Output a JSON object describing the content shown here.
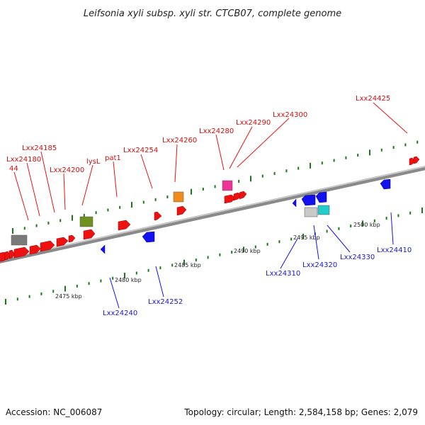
{
  "title": "Leifsonia xyli subsp. xyli str. CTCB07, complete genome",
  "footer": {
    "accession": "Accession: NC_006087",
    "summary": "Topology: circular; Length: 2,584,158 bp; Genes: 2,079"
  },
  "colors": {
    "forward_gene": "#ee1111",
    "reverse_gene": "#1111ee",
    "forward_label": "#cc1111",
    "reverse_label": "#1a1acc",
    "scale_dot": "#1a7a1a",
    "backbone": "#8a8a8a",
    "feature_gray": "#7a7a7a",
    "feature_olive": "#6f8f1f",
    "feature_orange": "#f08c1c",
    "feature_magenta": "#ee3399",
    "feature_lightgray": "#c9c9c9",
    "feature_cyan": "#22cccc"
  },
  "scale_labels": [
    "2475 kbp",
    "2480 kbp",
    "2485 kbp",
    "2490 kbp",
    "2495 kbp",
    "2500 kbp"
  ],
  "forward_labels": [
    "44",
    "Lxx24180",
    "Lxx24185",
    "Lxx24200",
    "lysL",
    "pat1",
    "Lxx24254",
    "Lxx24260",
    "Lxx24280",
    "Lxx24290",
    "Lxx24300",
    "Lxx24425"
  ],
  "reverse_labels": [
    "Lxx24240",
    "Lxx24252",
    "Lxx24310",
    "Lxx24320",
    "Lxx24330",
    "Lxx24410"
  ]
}
